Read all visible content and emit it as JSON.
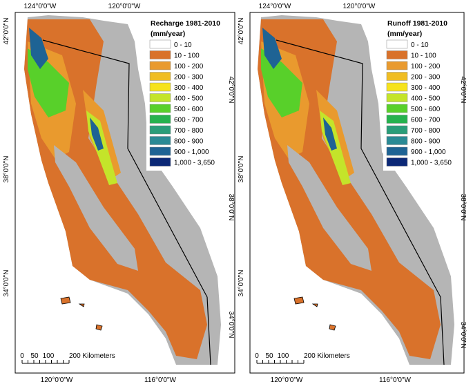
{
  "panels": [
    {
      "title": "Recharge 1981-2010",
      "units": "(mm/year)",
      "legend": [
        {
          "label": "0 - 10",
          "color": "#ffffff"
        },
        {
          "label": "10 - 100",
          "color": "#d9722b"
        },
        {
          "label": "100 - 200",
          "color": "#e99a2e"
        },
        {
          "label": "200 - 300",
          "color": "#f0bd22"
        },
        {
          "label": "300 - 400",
          "color": "#f6e31c"
        },
        {
          "label": "400 - 500",
          "color": "#c4e42a"
        },
        {
          "label": "500 - 600",
          "color": "#58d02a"
        },
        {
          "label": "600 - 700",
          "color": "#26b24e"
        },
        {
          "label": "700 - 800",
          "color": "#2a9d79"
        },
        {
          "label": "800 - 900",
          "color": "#2a8a95"
        },
        {
          "label": "900 - 1,000",
          "color": "#1e6394"
        },
        {
          "label": "1,000 - 3,650",
          "color": "#0b2876"
        }
      ],
      "top_labels": [
        "124°0'0\"W",
        "120°0'0\"W"
      ],
      "bottom_labels": [
        "120°0'0\"W",
        "116°0'0\"W"
      ],
      "left_labels": [
        "42°0'0\"N",
        "38°0'0\"N",
        "34°0'0\"N"
      ],
      "right_labels": [
        "42°0'0\"N",
        "38°0'0\"N",
        "34°0'0\"N"
      ],
      "scale_labels": [
        "0",
        "50",
        "100",
        "200 Kilometers"
      ]
    },
    {
      "title": "Runoff 1981-2010",
      "units": "(mm/year)",
      "legend": [
        {
          "label": "0 - 10",
          "color": "#ffffff"
        },
        {
          "label": "10 - 100",
          "color": "#d9722b"
        },
        {
          "label": "100 - 200",
          "color": "#e99a2e"
        },
        {
          "label": "200 - 300",
          "color": "#f0bd22"
        },
        {
          "label": "300 - 400",
          "color": "#f6e31c"
        },
        {
          "label": "400 - 500",
          "color": "#c4e42a"
        },
        {
          "label": "500 - 600",
          "color": "#58d02a"
        },
        {
          "label": "600 - 700",
          "color": "#26b24e"
        },
        {
          "label": "700 - 800",
          "color": "#2a9d79"
        },
        {
          "label": "800 - 900",
          "color": "#2a8a95"
        },
        {
          "label": "900 - 1,000",
          "color": "#1e6394"
        },
        {
          "label": "1,000 - 3,650",
          "color": "#0b2876"
        }
      ],
      "top_labels": [
        "124°0'0\"W",
        "120°0'0\"W"
      ],
      "bottom_labels": [
        "120°0'0\"W",
        "116°0'0\"W"
      ],
      "left_labels": [
        "42°0'0\"N",
        "38°0'0\"N",
        "34°0'0\"N"
      ],
      "right_labels": [
        "42°0'0\"N",
        "38°0'0\"N",
        "34°0'0\"N"
      ],
      "scale_labels": [
        "0",
        "50",
        "100",
        "200 Kilometers"
      ]
    }
  ]
}
